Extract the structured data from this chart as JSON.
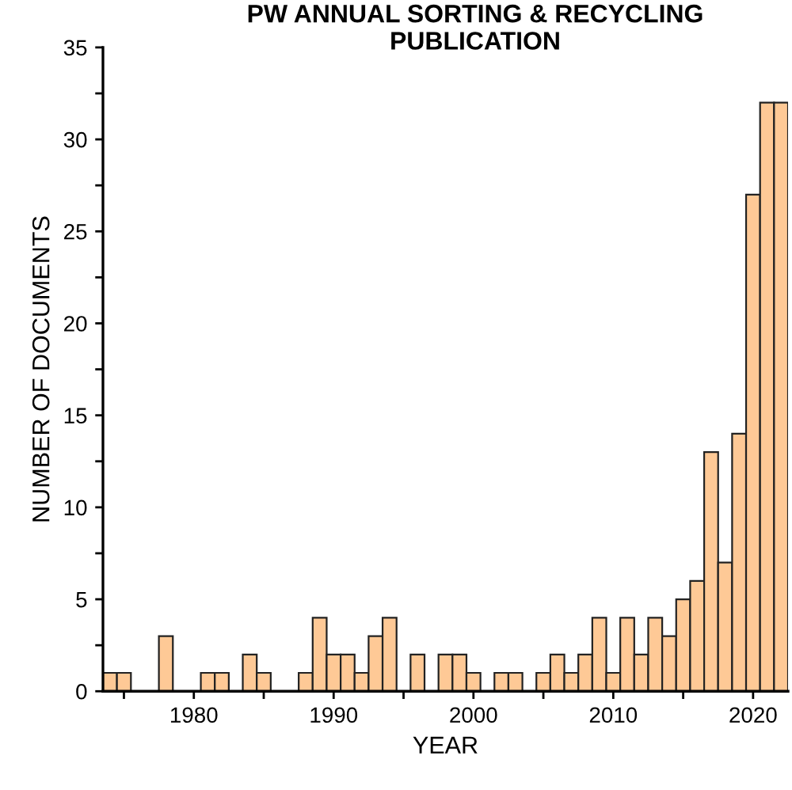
{
  "chart_data": {
    "type": "histogram",
    "title": "PW ANNUAL SORTING & RECYCLING PUBLICATION",
    "xlabel": "YEAR",
    "ylabel": "NUMBER OF DOCUMENTS",
    "bins": [
      1973.5,
      1974.5,
      1975.5,
      1976.5,
      1977.5,
      1978.5,
      1979.5,
      1980.5,
      1981.5,
      1982.5,
      1983.5,
      1984.5,
      1985.5,
      1986.5,
      1987.5,
      1988.5,
      1989.5,
      1990.5,
      1991.5,
      1992.5,
      1993.5,
      1994.5,
      1995.5,
      1996.5,
      1997.5,
      1998.5,
      1999.5,
      2000.5,
      2001.5,
      2002.5,
      2003.5,
      2004.5,
      2005.5,
      2006.5,
      2007.5,
      2008.5,
      2009.5,
      2010.5,
      2011.5,
      2012.5,
      2013.5,
      2014.5,
      2015.5,
      2016.5,
      2017.5,
      2018.5,
      2019.5,
      2020.5,
      2021.5,
      2022.5
    ],
    "values": [
      1,
      1,
      0,
      0,
      3,
      0,
      0,
      1,
      1,
      0,
      2,
      1,
      0,
      0,
      1,
      4,
      2,
      2,
      1,
      3,
      4,
      0,
      2,
      0,
      2,
      2,
      1,
      0,
      1,
      1,
      0,
      1,
      2,
      1,
      2,
      4,
      1,
      4,
      2,
      4,
      3,
      5,
      6,
      13,
      7,
      14,
      27,
      32,
      32
    ],
    "color": "#fec996",
    "xlim": [
      1973.5,
      2022.5
    ],
    "xticks": [
      {
        "value": 1975,
        "label": null
      },
      1980,
      {
        "value": 1985,
        "label": null
      },
      1990,
      {
        "value": 1995,
        "label": null
      },
      2000,
      {
        "value": 2005,
        "label": null
      },
      2010,
      {
        "value": 2015,
        "label": null
      },
      2020
    ],
    "ylim": [
      0,
      35
    ],
    "yticks": [
      0,
      {
        "value": 2.5,
        "label": null
      },
      5,
      {
        "value": 7.5,
        "label": null
      },
      10,
      {
        "value": 12.5,
        "label": null
      },
      15,
      {
        "value": 17.5,
        "label": null
      },
      20,
      {
        "value": 22.5,
        "label": null
      },
      25,
      {
        "value": 27.5,
        "label": null
      },
      30,
      {
        "value": 32.5,
        "label": null
      },
      35
    ],
    "grid": false
  }
}
